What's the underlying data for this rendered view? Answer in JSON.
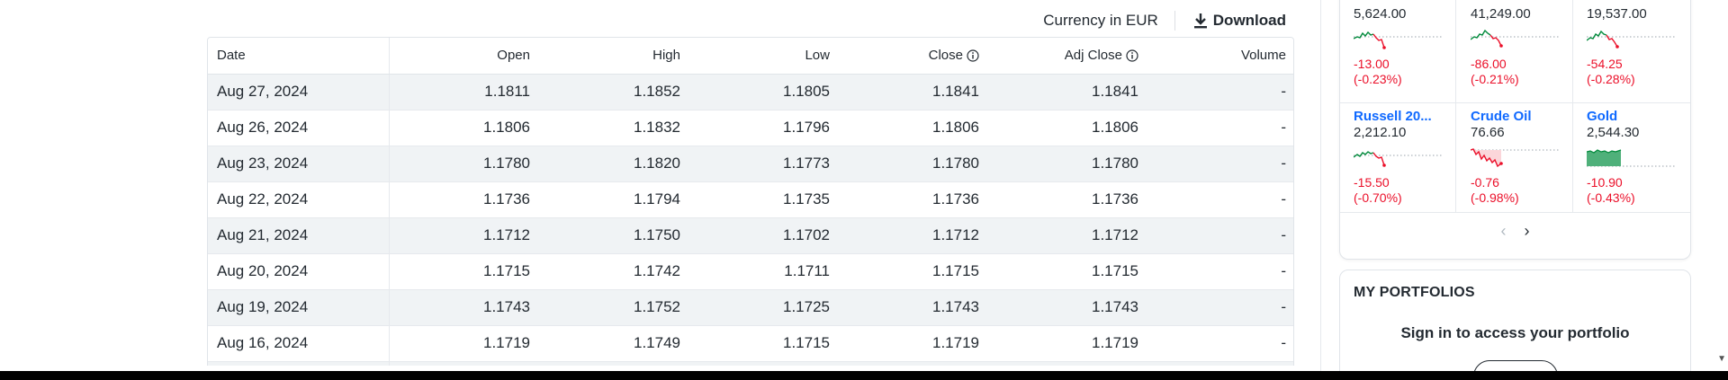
{
  "toolbar": {
    "currency_label": "Currency in EUR",
    "download_label": "Download"
  },
  "table": {
    "headers": {
      "date": "Date",
      "open": "Open",
      "high": "High",
      "low": "Low",
      "close": "Close",
      "adj_close": "Adj Close",
      "volume": "Volume"
    },
    "rows": [
      {
        "date": "Aug 27, 2024",
        "open": "1.1811",
        "high": "1.1852",
        "low": "1.1805",
        "close": "1.1841",
        "adj_close": "1.1841",
        "volume": "-"
      },
      {
        "date": "Aug 26, 2024",
        "open": "1.1806",
        "high": "1.1832",
        "low": "1.1796",
        "close": "1.1806",
        "adj_close": "1.1806",
        "volume": "-"
      },
      {
        "date": "Aug 23, 2024",
        "open": "1.1780",
        "high": "1.1820",
        "low": "1.1773",
        "close": "1.1780",
        "adj_close": "1.1780",
        "volume": "-"
      },
      {
        "date": "Aug 22, 2024",
        "open": "1.1736",
        "high": "1.1794",
        "low": "1.1735",
        "close": "1.1736",
        "adj_close": "1.1736",
        "volume": "-"
      },
      {
        "date": "Aug 21, 2024",
        "open": "1.1712",
        "high": "1.1750",
        "low": "1.1702",
        "close": "1.1712",
        "adj_close": "1.1712",
        "volume": "-"
      },
      {
        "date": "Aug 20, 2024",
        "open": "1.1715",
        "high": "1.1742",
        "low": "1.1711",
        "close": "1.1715",
        "adj_close": "1.1715",
        "volume": "-"
      },
      {
        "date": "Aug 19, 2024",
        "open": "1.1743",
        "high": "1.1752",
        "low": "1.1725",
        "close": "1.1743",
        "adj_close": "1.1743",
        "volume": "-"
      },
      {
        "date": "Aug 16, 2024",
        "open": "1.1719",
        "high": "1.1749",
        "low": "1.1715",
        "close": "1.1719",
        "adj_close": "1.1719",
        "volume": "-"
      },
      {
        "date": "",
        "open": "",
        "high": "",
        "low": "",
        "close": "",
        "adj_close": "",
        "volume": ""
      }
    ]
  },
  "markets": [
    {
      "name": "",
      "price": "5,624.00",
      "change": "-13.00",
      "change_pct": "(-0.23%)",
      "trend": "down"
    },
    {
      "name": "",
      "price": "41,249.00",
      "change": "-86.00",
      "change_pct": "(-0.21%)",
      "trend": "down"
    },
    {
      "name": "",
      "price": "19,537.00",
      "change": "-54.25",
      "change_pct": "(-0.28%)",
      "trend": "down"
    },
    {
      "name": "Russell 20...",
      "price": "2,212.10",
      "change": "-15.50",
      "change_pct": "(-0.70%)",
      "trend": "down"
    },
    {
      "name": "Crude Oil",
      "price": "76.66",
      "change": "-0.76",
      "change_pct": "(-0.98%)",
      "trend": "down"
    },
    {
      "name": "Gold",
      "price": "2,544.30",
      "change": "-10.90",
      "change_pct": "(-0.43%)",
      "trend": "down-area"
    }
  ],
  "pager": {
    "prev_icon": "chevron-left-icon",
    "next_icon": "chevron-right-icon"
  },
  "portfolios": {
    "title": "MY PORTFOLIOS",
    "message": "Sign in to access your portfolio"
  },
  "colors": {
    "negative": "#eb0f29",
    "positive": "#008a3b",
    "link": "#0f69ff",
    "row_stripe": "#f0f3f5"
  }
}
